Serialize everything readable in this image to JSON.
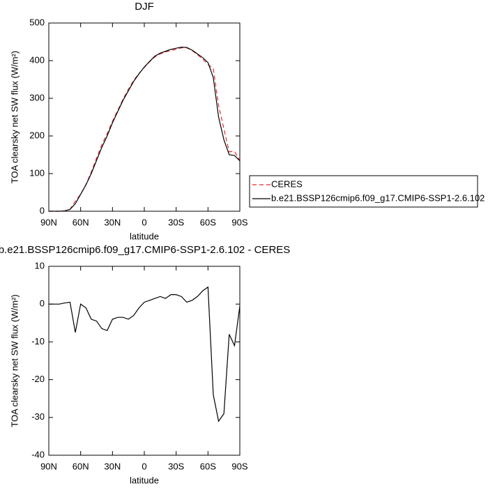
{
  "chart_data": [
    {
      "type": "line",
      "title": "DJF",
      "xlabel": "latitude",
      "ylabel": "TOA clearsky net SW flux (W/m²)",
      "x": [
        90,
        85,
        80,
        75,
        70,
        65,
        60,
        55,
        50,
        45,
        40,
        35,
        30,
        25,
        20,
        15,
        10,
        5,
        0,
        -5,
        -10,
        -15,
        -20,
        -25,
        -30,
        -35,
        -40,
        -45,
        -50,
        -55,
        -60,
        -65,
        -70,
        -75,
        -80,
        -85,
        -90
      ],
      "xlim": [
        90,
        -90
      ],
      "xticks": [
        {
          "value": 90,
          "label": "90N"
        },
        {
          "value": 60,
          "label": "60N"
        },
        {
          "value": 30,
          "label": "30N"
        },
        0,
        {
          "value": -30,
          "label": "30S"
        },
        {
          "value": -60,
          "label": "60S"
        },
        {
          "value": -90,
          "label": "90S"
        }
      ],
      "ylim": [
        0,
        500
      ],
      "yticks": [
        0,
        100,
        200,
        300,
        400,
        500
      ],
      "legend": "outside-right",
      "series": [
        {
          "name": "CERES",
          "color": "#e8262a",
          "dashed": true,
          "values": [
            0,
            0,
            0,
            0.7,
            5,
            27,
            45,
            71,
            104,
            141,
            177,
            206,
            239,
            268,
            298,
            324,
            348,
            366,
            382,
            397,
            410,
            418,
            423,
            427,
            430,
            434,
            434,
            427,
            416,
            404,
            390,
            379,
            281,
            219,
            158,
            159,
            135
          ]
        },
        {
          "name": "b.e21.BSSP126cmip6.f09_g17.CMIP6-SSP1-2.6.102",
          "color": "#000000",
          "dashed": false,
          "values": [
            0,
            0,
            0,
            1,
            5,
            20,
            45,
            70,
            100,
            135,
            170,
            200,
            235,
            265,
            295,
            320,
            345,
            365,
            383,
            398,
            412,
            420,
            425,
            430,
            433,
            436,
            435,
            428,
            418,
            408,
            395,
            355,
            250,
            190,
            150,
            148,
            134
          ]
        }
      ]
    },
    {
      "type": "line",
      "title": "b.e21.BSSP126cmip6.f09_g17.CMIP6-SSP1-2.6.102 - CERES",
      "xlabel": "latitude",
      "ylabel": "TOA clearsky net SW flux (W/m²)",
      "x": [
        90,
        85,
        80,
        75,
        70,
        65,
        60,
        55,
        50,
        45,
        40,
        35,
        30,
        25,
        20,
        15,
        10,
        5,
        0,
        -5,
        -10,
        -15,
        -20,
        -25,
        -30,
        -35,
        -40,
        -45,
        -50,
        -55,
        -60,
        -65,
        -70,
        -75,
        -80,
        -85,
        -90
      ],
      "xlim": [
        90,
        -90
      ],
      "xticks": [
        {
          "value": 90,
          "label": "90N"
        },
        {
          "value": 60,
          "label": "60N"
        },
        {
          "value": 30,
          "label": "30N"
        },
        0,
        {
          "value": -30,
          "label": "30S"
        },
        {
          "value": -60,
          "label": "60S"
        },
        {
          "value": -90,
          "label": "90S"
        }
      ],
      "ylim": [
        -40,
        10
      ],
      "yticks": [
        -40,
        -30,
        -20,
        -10,
        0,
        10
      ],
      "series": [
        {
          "color": "#000000",
          "dashed": false,
          "values": [
            0,
            0,
            0,
            0.3,
            0.5,
            -7.5,
            0,
            -1,
            -4,
            -4.5,
            -6.5,
            -7,
            -4,
            -3.5,
            -3.5,
            -4,
            -3,
            -1,
            0.5,
            1,
            1.5,
            2,
            1.5,
            2.5,
            2.5,
            2,
            0.5,
            1,
            2,
            3.5,
            4.5,
            -24,
            -31,
            -29,
            -8,
            -11,
            -0.5
          ]
        }
      ]
    }
  ]
}
